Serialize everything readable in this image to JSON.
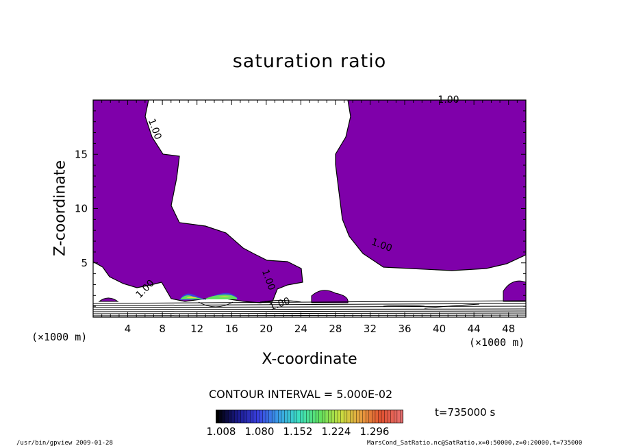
{
  "chart_data": {
    "type": "contour",
    "title": "saturation ratio",
    "xlabel": "X-coordinate",
    "ylabel": "Z-coordinate",
    "x_scale_label": "(×1000 m)",
    "z_scale_label": "(×1000 m)",
    "xlim": [
      0,
      50
    ],
    "ylim": [
      0,
      20
    ],
    "x_ticks": [
      4,
      8,
      12,
      16,
      20,
      24,
      28,
      32,
      36,
      40,
      44,
      48
    ],
    "y_ticks": [
      5,
      10,
      15
    ],
    "contour_labels": [
      "1.00",
      "1.00",
      "1.00",
      "1.00",
      "1.00",
      "1.00"
    ],
    "contour_interval_text": "CONTOUR INTERVAL = 5.000E-02",
    "time_text": "t=735000 s",
    "colorbar": {
      "tick_labels": [
        "1.008",
        "1.080",
        "1.152",
        "1.224",
        "1.296"
      ],
      "range": [
        1.0,
        1.3
      ],
      "colors": [
        "#000000",
        "#1a1a8c",
        "#3a40e0",
        "#3aa0e8",
        "#3ce0c0",
        "#60e060",
        "#c8e040",
        "#e8a040",
        "#e05030",
        "#e87070"
      ]
    },
    "fill_color": "#7f00aa"
  },
  "footer": {
    "left": "/usr/bin/gpview  2009-01-28",
    "right": "MarsCond_SatRatio.nc@SatRatio,x=0:50000,z=0:20000,t=735000"
  }
}
